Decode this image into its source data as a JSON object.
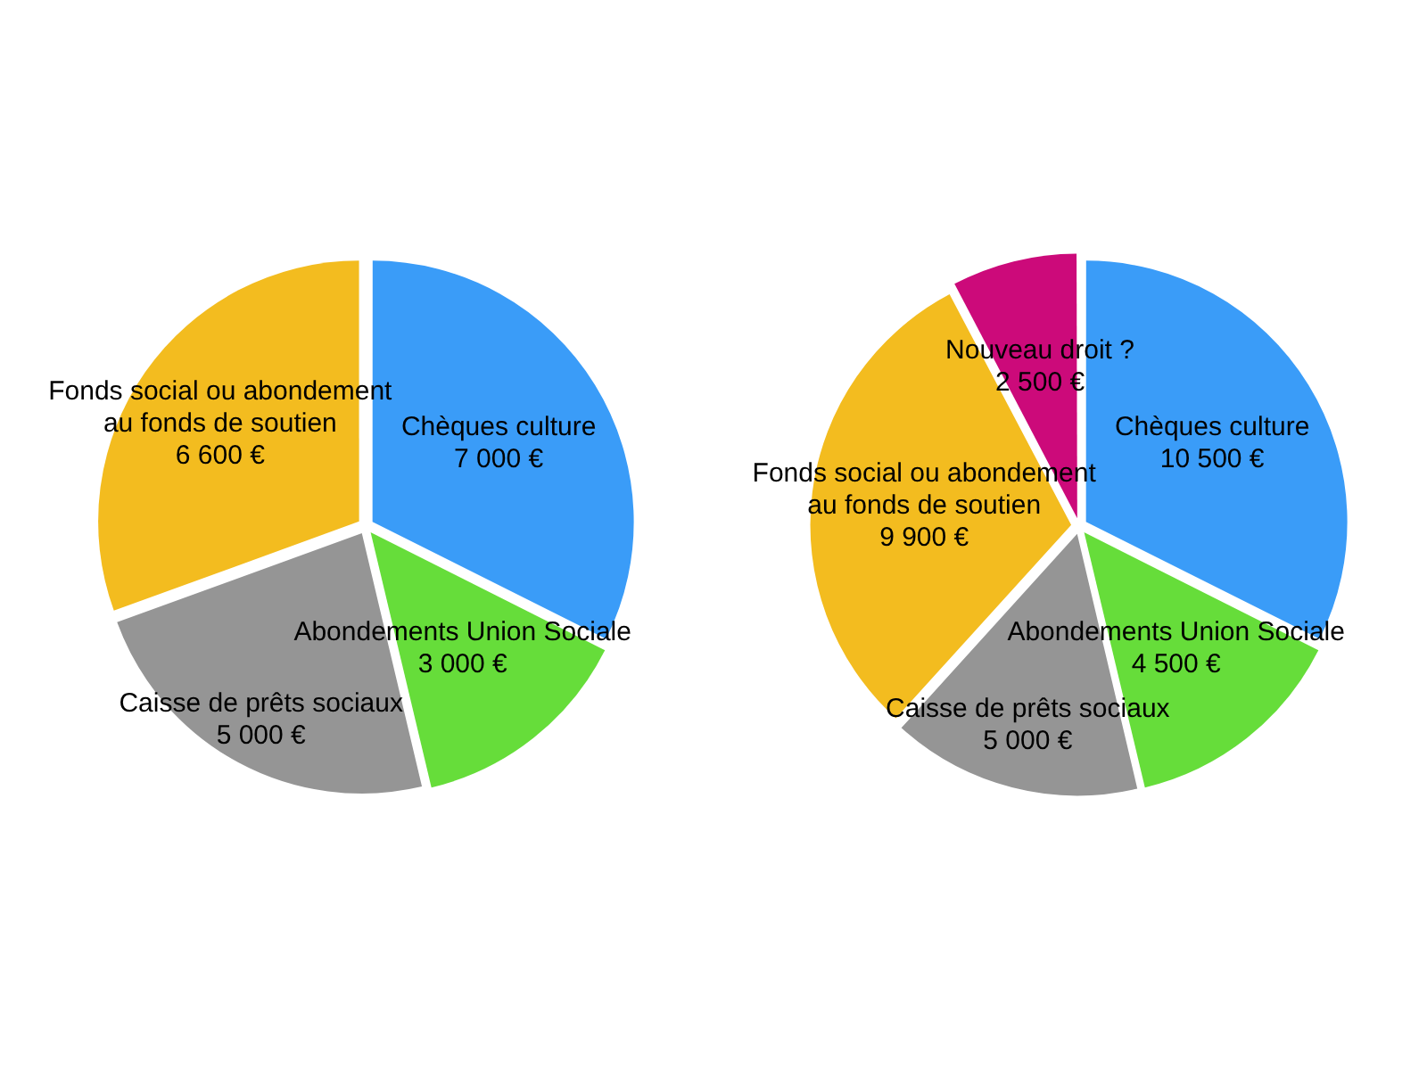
{
  "chart_data": [
    {
      "type": "pie",
      "categories": [
        "Chèques culture",
        "Abondements Union Sociale",
        "Caisse de prêts sociaux",
        "Fonds social ou abondement au fonds de soutien"
      ],
      "values": [
        7000,
        3000,
        5000,
        6600
      ],
      "colors": [
        "#3a9cf8",
        "#66dd3a",
        "#959595",
        "#f3bc1f"
      ],
      "value_labels": [
        "7 000 €",
        "3 000 €",
        "5 000 €",
        "6 600 €"
      ],
      "legend": false
    },
    {
      "type": "pie",
      "categories": [
        "Chèques culture",
        "Abondements Union Sociale",
        "Caisse de prêts sociaux",
        "Fonds social ou abondement au fonds de soutien",
        "Nouveau droit ?"
      ],
      "values": [
        10500,
        4500,
        5000,
        9900,
        2500
      ],
      "colors": [
        "#3a9cf8",
        "#66dd3a",
        "#959595",
        "#f3bc1f",
        "#cc0a7a"
      ],
      "value_labels": [
        "10 500 €",
        "4 500 €",
        "5 000 €",
        "9 900 €",
        "2 500 €"
      ],
      "legend": false
    }
  ]
}
